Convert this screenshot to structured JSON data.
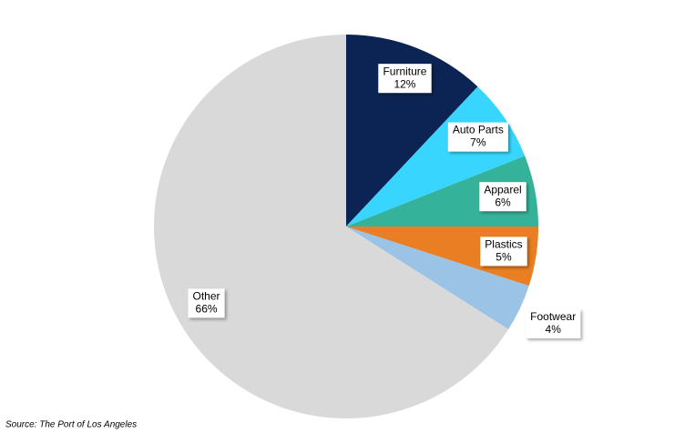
{
  "chart_data": {
    "type": "pie",
    "categories": [
      "Furniture",
      "Auto Parts",
      "Apparel",
      "Plastics",
      "Footwear",
      "Other"
    ],
    "values": [
      12,
      7,
      6,
      5,
      4,
      66
    ],
    "value_labels": [
      "12%",
      "7%",
      "6%",
      "5%",
      "4%",
      "66%"
    ],
    "colors": [
      "#0c2454",
      "#38d6ff",
      "#35b39a",
      "#e97e22",
      "#9ac3e6",
      "#d9d9d9"
    ],
    "source": "Source: The Port of Los Angeles"
  }
}
